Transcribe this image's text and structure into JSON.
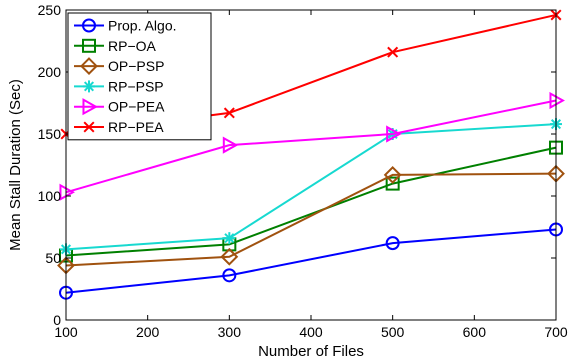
{
  "chart_data": {
    "type": "line",
    "title": "",
    "xlabel": "Number of Files",
    "ylabel": "Mean Stall Duration (Sec)",
    "xlim": [
      100,
      700
    ],
    "ylim": [
      0,
      250
    ],
    "xticks": [
      100,
      200,
      300,
      400,
      500,
      600,
      700
    ],
    "yticks": [
      0,
      50,
      100,
      150,
      200,
      250
    ],
    "grid": false,
    "legend_position": "top-left",
    "x": [
      100,
      300,
      500,
      700
    ],
    "series": [
      {
        "name": "Prop. Algo.",
        "color": "#0000ff",
        "marker": "circle",
        "values": [
          22,
          36,
          62,
          73
        ]
      },
      {
        "name": "RP−OA",
        "color": "#008000",
        "marker": "square",
        "values": [
          52,
          61,
          110,
          139
        ]
      },
      {
        "name": "OP−PSP",
        "color": "#a0520f",
        "marker": "diamond",
        "values": [
          44,
          51,
          117,
          118
        ]
      },
      {
        "name": "RP−PSP",
        "color": "#17d9d0",
        "marker": "asterisk",
        "values": [
          57,
          66,
          150,
          158
        ]
      },
      {
        "name": "OP−PEA",
        "color": "#ff00ff",
        "marker": "triangle-right",
        "values": [
          103,
          141,
          150,
          177
        ]
      },
      {
        "name": "RP−PEA",
        "color": "#ff0000",
        "marker": "x",
        "values": [
          150,
          167,
          216,
          246
        ]
      }
    ]
  }
}
